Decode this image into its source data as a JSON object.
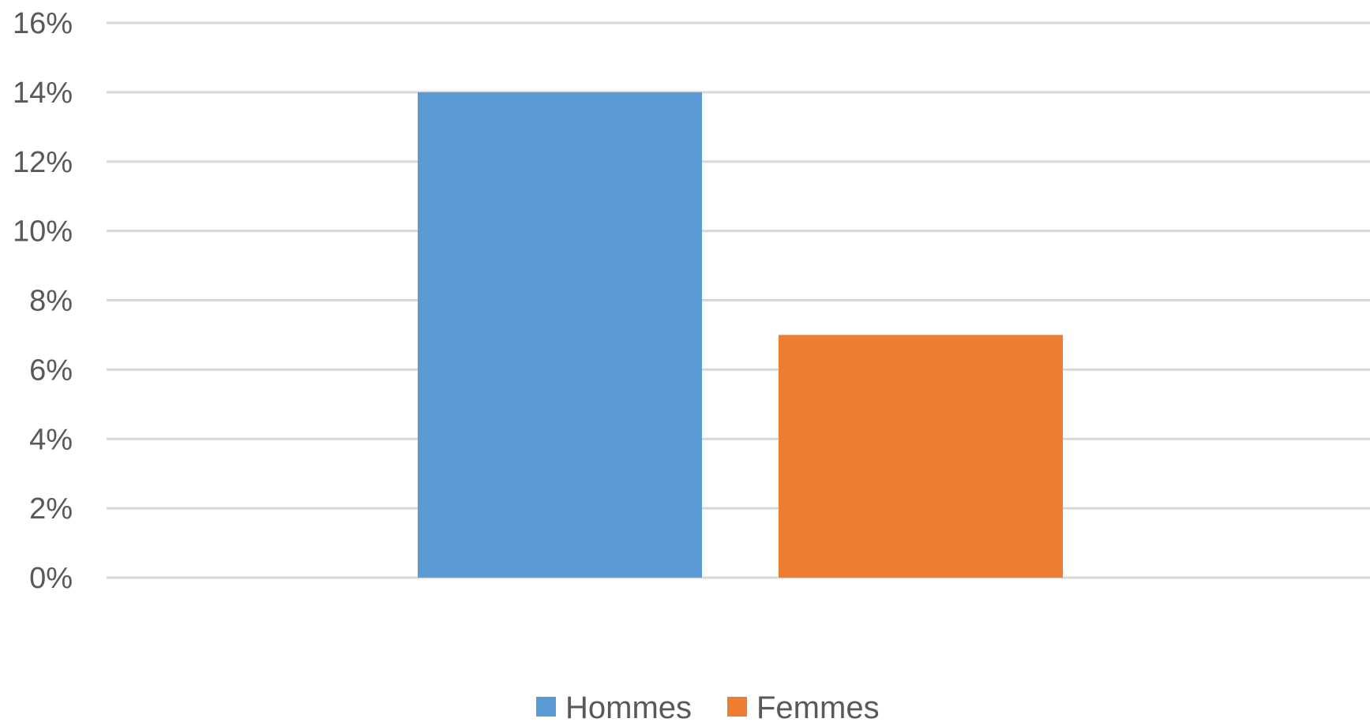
{
  "chart_data": {
    "type": "bar",
    "categories": [
      ""
    ],
    "series": [
      {
        "name": "Hommes",
        "values": [
          0.14
        ],
        "color": "#5b9bd5"
      },
      {
        "name": "Femmes",
        "values": [
          0.07
        ],
        "color": "#ed7d31"
      }
    ],
    "title": "",
    "xlabel": "",
    "ylabel": "",
    "ylim": [
      0,
      0.16
    ],
    "y_ticks": [
      {
        "value": 0.0,
        "label": "0%"
      },
      {
        "value": 0.02,
        "label": "2%"
      },
      {
        "value": 0.04,
        "label": "4%"
      },
      {
        "value": 0.06,
        "label": "6%"
      },
      {
        "value": 0.08,
        "label": "8%"
      },
      {
        "value": 0.1,
        "label": "10%"
      },
      {
        "value": 0.12,
        "label": "12%"
      },
      {
        "value": 0.14,
        "label": "14%"
      },
      {
        "value": 0.16,
        "label": "16%"
      }
    ],
    "grid": true,
    "legend_position": "bottom"
  }
}
